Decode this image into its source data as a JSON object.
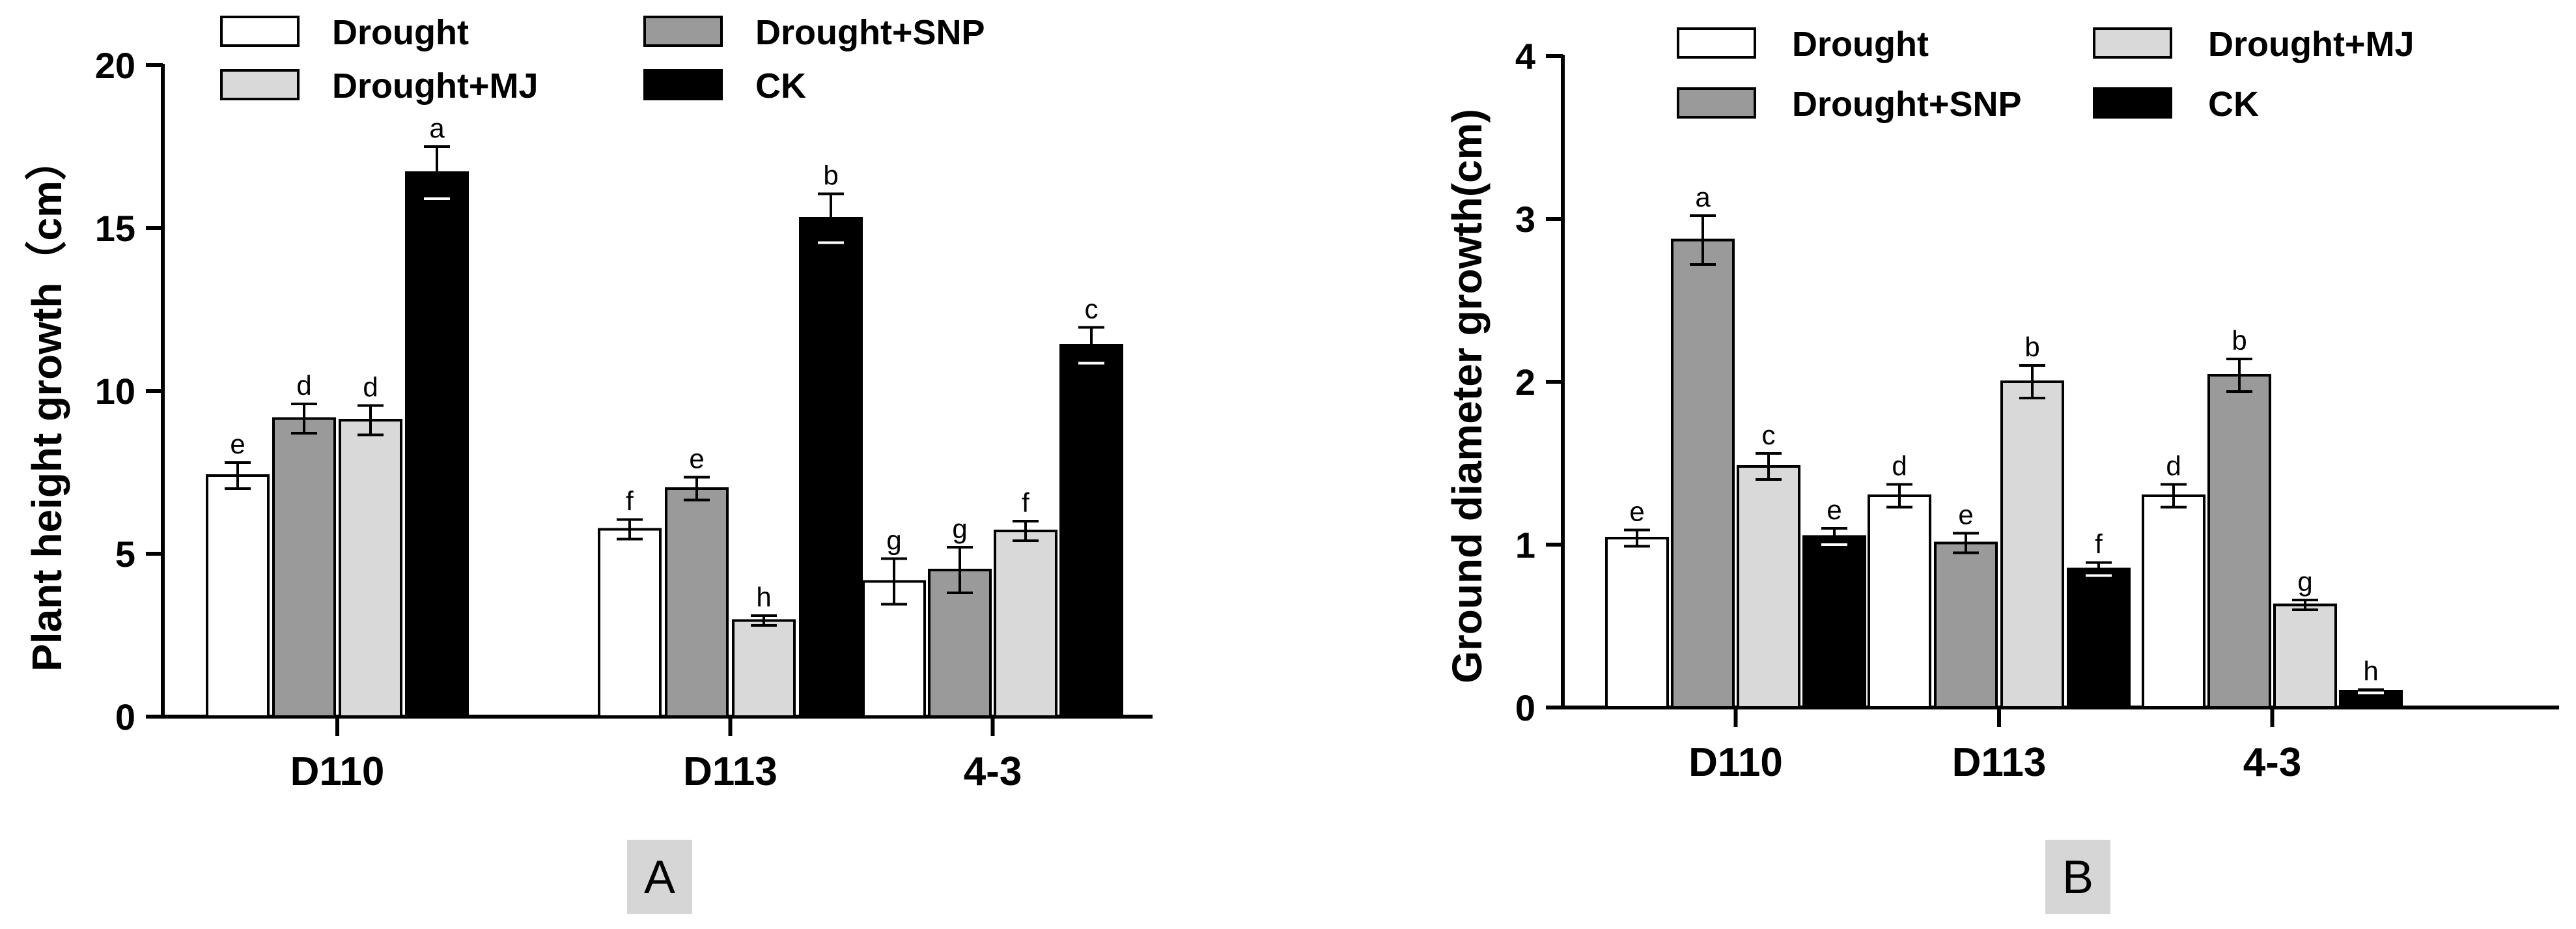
{
  "colors": {
    "Drought": "#ffffff",
    "Drought+SNP": "#9a9a9a",
    "Drought+MJ": "#d9d9d9",
    "CK": "#000000",
    "panel_label_bg": "#d6d6d6"
  },
  "chart_data": [
    {
      "type": "bar",
      "panel": "A",
      "title": "",
      "xlabel": "",
      "ylabel": "Plant height growth（cm）",
      "ylim": [
        0,
        20
      ],
      "yticks": [
        "0",
        "5",
        "10",
        "15",
        "20"
      ],
      "categories": [
        "D110",
        "D113",
        "4-3"
      ],
      "legend": {
        "placement": "top",
        "entries": [
          "Drought",
          "Drought+SNP",
          "Drought+MJ",
          "CK"
        ]
      },
      "series": [
        {
          "name": "Drought",
          "values": [
            7.4,
            5.75,
            4.15
          ],
          "errors": [
            0.4,
            0.3,
            0.7
          ],
          "letters": [
            "e",
            "f",
            "g"
          ]
        },
        {
          "name": "Drought+SNP",
          "values": [
            9.15,
            7.0,
            4.5
          ],
          "errors": [
            0.45,
            0.35,
            0.7
          ],
          "letters": [
            "d",
            "e",
            "g"
          ]
        },
        {
          "name": "Drought+MJ",
          "values": [
            9.1,
            2.95,
            5.7
          ],
          "errors": [
            0.45,
            0.15,
            0.3
          ],
          "letters": [
            "d",
            "h",
            "f"
          ]
        },
        {
          "name": "CK",
          "values": [
            16.7,
            15.3,
            11.4
          ],
          "errors": [
            0.8,
            0.75,
            0.55
          ],
          "letters": [
            "a",
            "b",
            "c"
          ]
        }
      ]
    },
    {
      "type": "bar",
      "panel": "B",
      "title": "",
      "xlabel": "",
      "ylabel": "Ground diameter growth(cm)",
      "ylim": [
        0,
        4
      ],
      "yticks": [
        "0",
        "1",
        "2",
        "3",
        "4"
      ],
      "categories": [
        "D110",
        "D113",
        "4-3"
      ],
      "legend": {
        "placement": "top",
        "entries": [
          "Drought",
          "Drought+SNP",
          "Drought+MJ",
          "CK"
        ]
      },
      "series": [
        {
          "name": "Drought",
          "values": [
            1.04,
            1.3,
            1.3
          ],
          "errors": [
            0.05,
            0.07,
            0.07
          ],
          "letters": [
            "e",
            "d",
            "d"
          ]
        },
        {
          "name": "Drought+SNP",
          "values": [
            2.87,
            1.01,
            2.04
          ],
          "errors": [
            0.15,
            0.06,
            0.1
          ],
          "letters": [
            "a",
            "e",
            "b"
          ]
        },
        {
          "name": "Drought+MJ",
          "values": [
            1.48,
            2.0,
            0.63
          ],
          "errors": [
            0.08,
            0.1,
            0.03
          ],
          "letters": [
            "c",
            "b",
            "g"
          ]
        },
        {
          "name": "CK",
          "values": [
            1.05,
            0.85,
            0.1
          ],
          "errors": [
            0.05,
            0.04,
            0.01
          ],
          "letters": [
            "e",
            "f",
            "h"
          ]
        }
      ]
    }
  ]
}
